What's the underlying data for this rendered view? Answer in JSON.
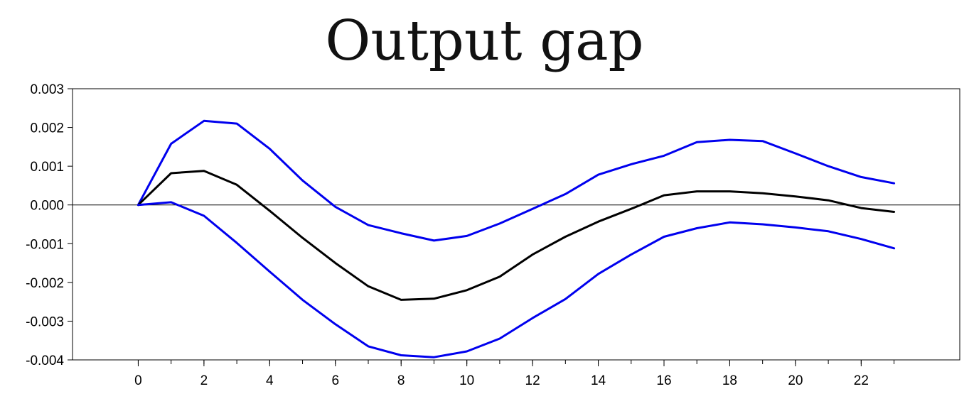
{
  "chart_data": {
    "type": "line",
    "title": "Output gap",
    "xlabel": "",
    "ylabel": "",
    "x": [
      0,
      1,
      2,
      3,
      4,
      5,
      6,
      7,
      8,
      9,
      10,
      11,
      12,
      13,
      14,
      15,
      16,
      17,
      18,
      19,
      20,
      21,
      22,
      23
    ],
    "xlim": [
      -2,
      25
    ],
    "ylim": [
      -0.004,
      0.003
    ],
    "x_ticks": [
      0,
      2,
      4,
      6,
      8,
      10,
      12,
      14,
      16,
      18,
      20,
      22
    ],
    "x_tick_labels": [
      "0",
      "2",
      "4",
      "6",
      "8",
      "10",
      "12",
      "14",
      "16",
      "18",
      "20",
      "22"
    ],
    "y_ticks": [
      0.003,
      0.002,
      0.001,
      0.0,
      -0.001,
      -0.002,
      -0.003,
      -0.004
    ],
    "y_tick_labels": [
      "0.003",
      "0.002",
      "0.001",
      "0.000",
      "-0.001",
      "-0.002",
      "-0.003",
      "-0.004"
    ],
    "zero_line": true,
    "grid": false,
    "series": [
      {
        "color": "#0000ee",
        "values": [
          0.0,
          0.00158,
          0.00217,
          0.0021,
          0.00145,
          0.00063,
          -5e-05,
          -0.00052,
          -0.00073,
          -0.00092,
          -0.0008,
          -0.00048,
          -0.0001,
          0.00028,
          0.00078,
          0.00105,
          0.00127,
          0.00162,
          0.00168,
          0.00165,
          0.00133,
          0.001,
          0.00072,
          0.00056
        ]
      },
      {
        "color": "#000000",
        "values": [
          0.0,
          0.00082,
          0.00088,
          0.00052,
          -0.00015,
          -0.00085,
          -0.0015,
          -0.0021,
          -0.00245,
          -0.00242,
          -0.0022,
          -0.00185,
          -0.00128,
          -0.00082,
          -0.00043,
          -0.0001,
          0.00025,
          0.00035,
          0.00035,
          0.0003,
          0.00022,
          0.00012,
          -8e-05,
          -0.00018
        ]
      },
      {
        "color": "#0000ee",
        "values": [
          0.0,
          7e-05,
          -0.00028,
          -0.00098,
          -0.00172,
          -0.00245,
          -0.00308,
          -0.00365,
          -0.00388,
          -0.00393,
          -0.00378,
          -0.00345,
          -0.00292,
          -0.00243,
          -0.00178,
          -0.00128,
          -0.00082,
          -0.0006,
          -0.00045,
          -0.0005,
          -0.00058,
          -0.00068,
          -0.00088,
          -0.00112
        ]
      }
    ]
  }
}
